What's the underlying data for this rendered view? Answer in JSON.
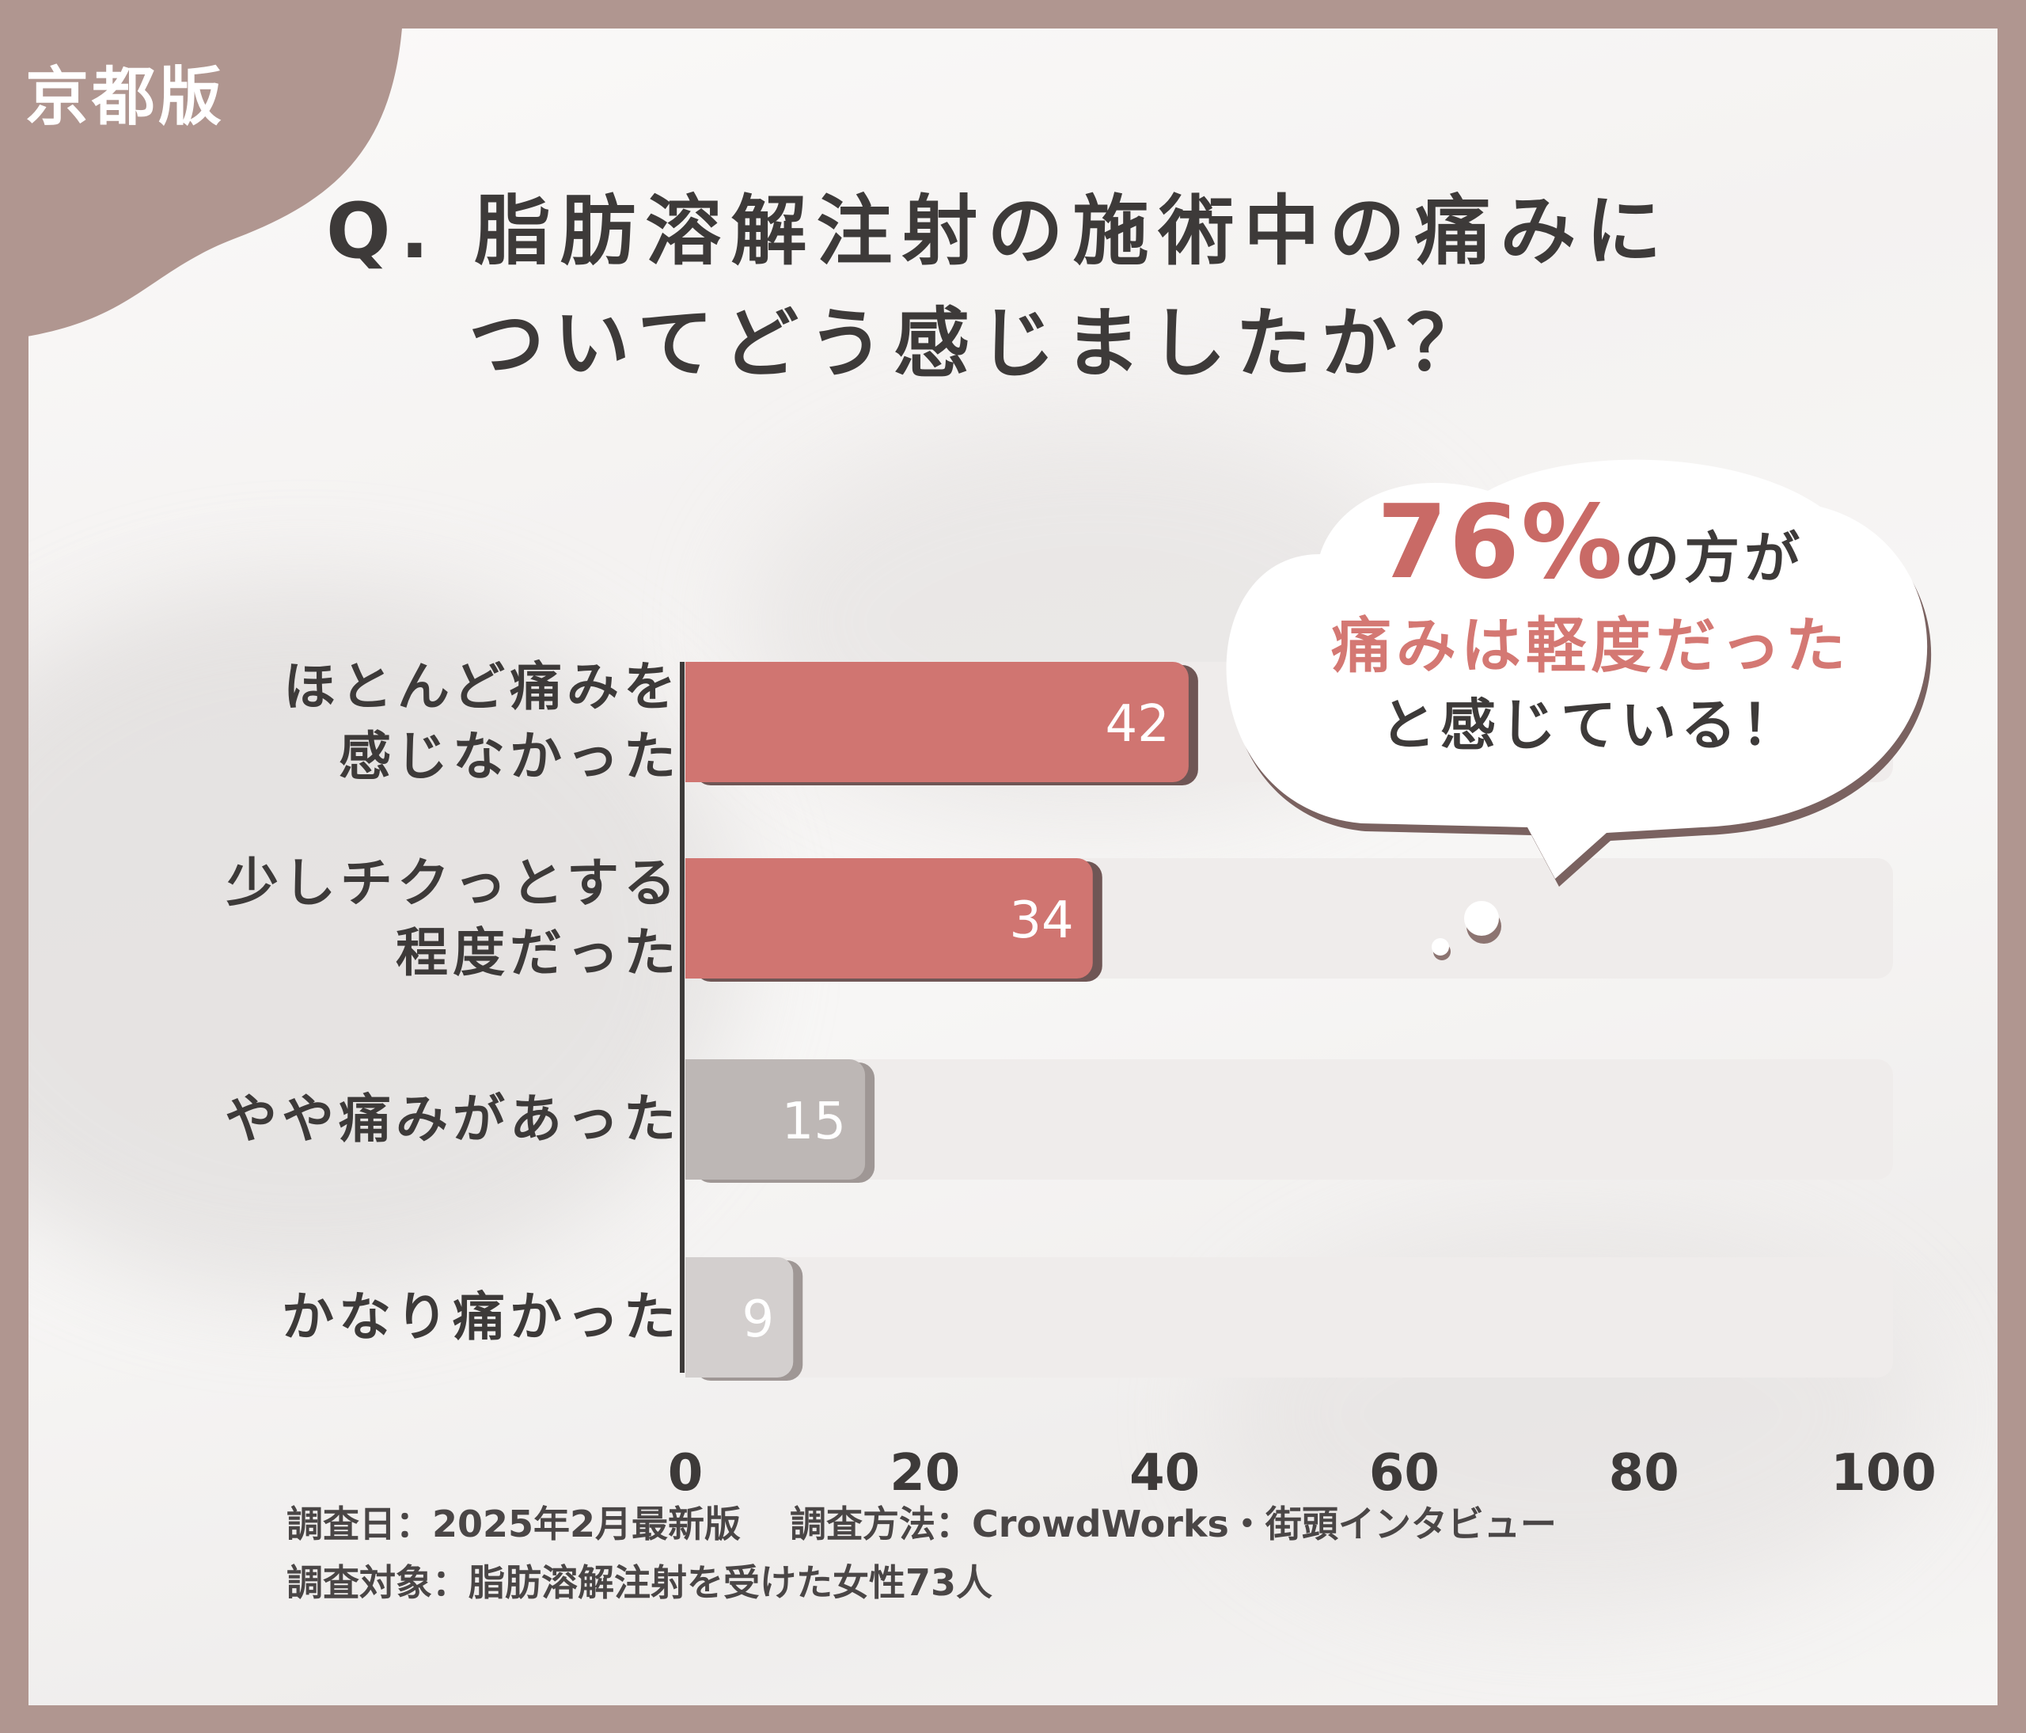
{
  "badge": "京都版",
  "title": {
    "line1": "Q. 脂肪溶解注射の施術中の痛みに",
    "line2": "ついてどう感じましたか？"
  },
  "callout": {
    "highlight": "76%",
    "text1": "の方が",
    "text2": "痛みは軽度だった",
    "text3": "と感じている！"
  },
  "footer": {
    "line1": "調査日：2025年2月最新版　 調査方法：CrowdWorks・街頭インタビュー",
    "line2": "調査対象：脂肪溶解注射を受けた女性73人"
  },
  "chart_data": {
    "type": "bar",
    "orientation": "horizontal",
    "categories": [
      [
        "ほとんど痛みを",
        "感じなかった"
      ],
      [
        "少しチクっとする",
        "程度だった"
      ],
      [
        "やや痛みがあった"
      ],
      [
        "かなり痛かった"
      ]
    ],
    "values": [
      42,
      34,
      15,
      9
    ],
    "xlim": [
      0,
      100
    ],
    "xticks": [
      "0",
      "20",
      "40",
      "60",
      "80",
      "100"
    ],
    "colors": [
      "#d07571",
      "#d07571",
      "#bdb7b5",
      "#d3cfce"
    ],
    "track_color": "#efeceb"
  }
}
